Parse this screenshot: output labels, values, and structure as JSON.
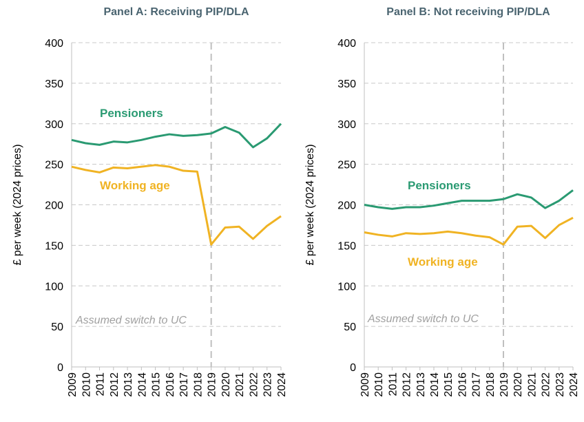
{
  "chart_data": [
    {
      "type": "line",
      "title": "Panel A: Receiving PIP/DLA",
      "ylabel": "£ per week (2024 prices)",
      "xlabel": "",
      "ylim": [
        0,
        400
      ],
      "yticks": [
        0,
        50,
        100,
        150,
        200,
        250,
        300,
        350,
        400
      ],
      "grid": true,
      "x": [
        2009,
        2010,
        2011,
        2012,
        2013,
        2014,
        2015,
        2016,
        2017,
        2018,
        2019,
        2020,
        2021,
        2022,
        2023,
        2024
      ],
      "series": [
        {
          "name": "Pensioners",
          "color": "#2a9a72",
          "values": [
            280,
            276,
            274,
            278,
            277,
            280,
            284,
            287,
            285,
            286,
            288,
            296,
            289,
            271,
            282,
            300
          ]
        },
        {
          "name": "Working age",
          "color": "#f0b323",
          "values": [
            247,
            243,
            240,
            246,
            245,
            247,
            249,
            247,
            242,
            241,
            151,
            172,
            173,
            158,
            174,
            186
          ]
        }
      ],
      "annotation": {
        "text": "Assumed switch to UC",
        "x": 2019
      }
    },
    {
      "type": "line",
      "title": "Panel B: Not receiving PIP/DLA",
      "ylabel": "£ per week (2024 prices)",
      "xlabel": "",
      "ylim": [
        0,
        400
      ],
      "yticks": [
        0,
        50,
        100,
        150,
        200,
        250,
        300,
        350,
        400
      ],
      "grid": true,
      "x": [
        2009,
        2010,
        2011,
        2012,
        2013,
        2014,
        2015,
        2016,
        2017,
        2018,
        2019,
        2020,
        2021,
        2022,
        2023,
        2024
      ],
      "series": [
        {
          "name": "Pensioners",
          "color": "#2a9a72",
          "values": [
            200,
            197,
            195,
            197,
            197,
            199,
            202,
            205,
            205,
            205,
            207,
            213,
            209,
            196,
            205,
            218
          ]
        },
        {
          "name": "Working age",
          "color": "#f0b323",
          "values": [
            166,
            163,
            161,
            165,
            164,
            165,
            167,
            165,
            162,
            160,
            151,
            173,
            174,
            159,
            175,
            184
          ]
        }
      ],
      "annotation": {
        "text": "Assumed switch to UC",
        "x": 2019
      }
    }
  ]
}
